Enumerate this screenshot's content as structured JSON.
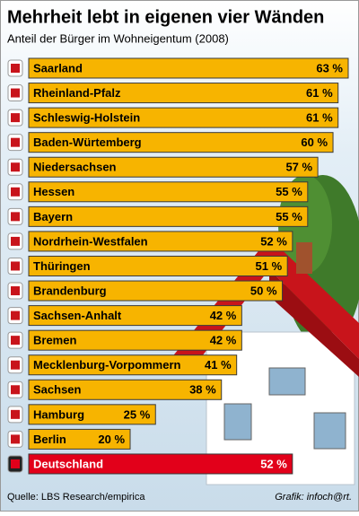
{
  "chart_data": {
    "type": "bar",
    "title": "Mehrheit lebt in eigenen vier Wänden",
    "subtitle": "Anteil der Bürger im Wohneigentum (2008)",
    "categories": [
      "Saarland",
      "Rheinland-Pfalz",
      "Schleswig-Holstein",
      "Baden-Würtemberg",
      "Niedersachsen",
      "Hessen",
      "Bayern",
      "Nordrhein-Westfalen",
      "Thüringen",
      "Brandenburg",
      "Sachsen-Anhalt",
      "Bremen",
      "Mecklenburg-Vorpommern",
      "Sachsen",
      "Hamburg",
      "Berlin",
      "Deutschland"
    ],
    "values": [
      63,
      61,
      61,
      60,
      57,
      55,
      55,
      52,
      51,
      50,
      42,
      42,
      41,
      38,
      25,
      20,
      52
    ],
    "value_labels": [
      "63 %",
      "61 %",
      "61 %",
      "60 %",
      "57 %",
      "55 %",
      "55 %",
      "52 %",
      "51 %",
      "50 %",
      "42 %",
      "42 %",
      "41 %",
      "38 %",
      "25 %",
      "20 %",
      "52 %"
    ],
    "colors": [
      "#f7b400",
      "#f7b400",
      "#f7b400",
      "#f7b400",
      "#f7b400",
      "#f7b400",
      "#f7b400",
      "#f7b400",
      "#f7b400",
      "#f7b400",
      "#f7b400",
      "#f7b400",
      "#f7b400",
      "#f7b400",
      "#f7b400",
      "#f7b400",
      "#e2001a"
    ],
    "xlim": [
      0,
      63
    ],
    "source": "Quelle: LBS Research/empirica",
    "credit": "Grafik: infoch@rt."
  }
}
